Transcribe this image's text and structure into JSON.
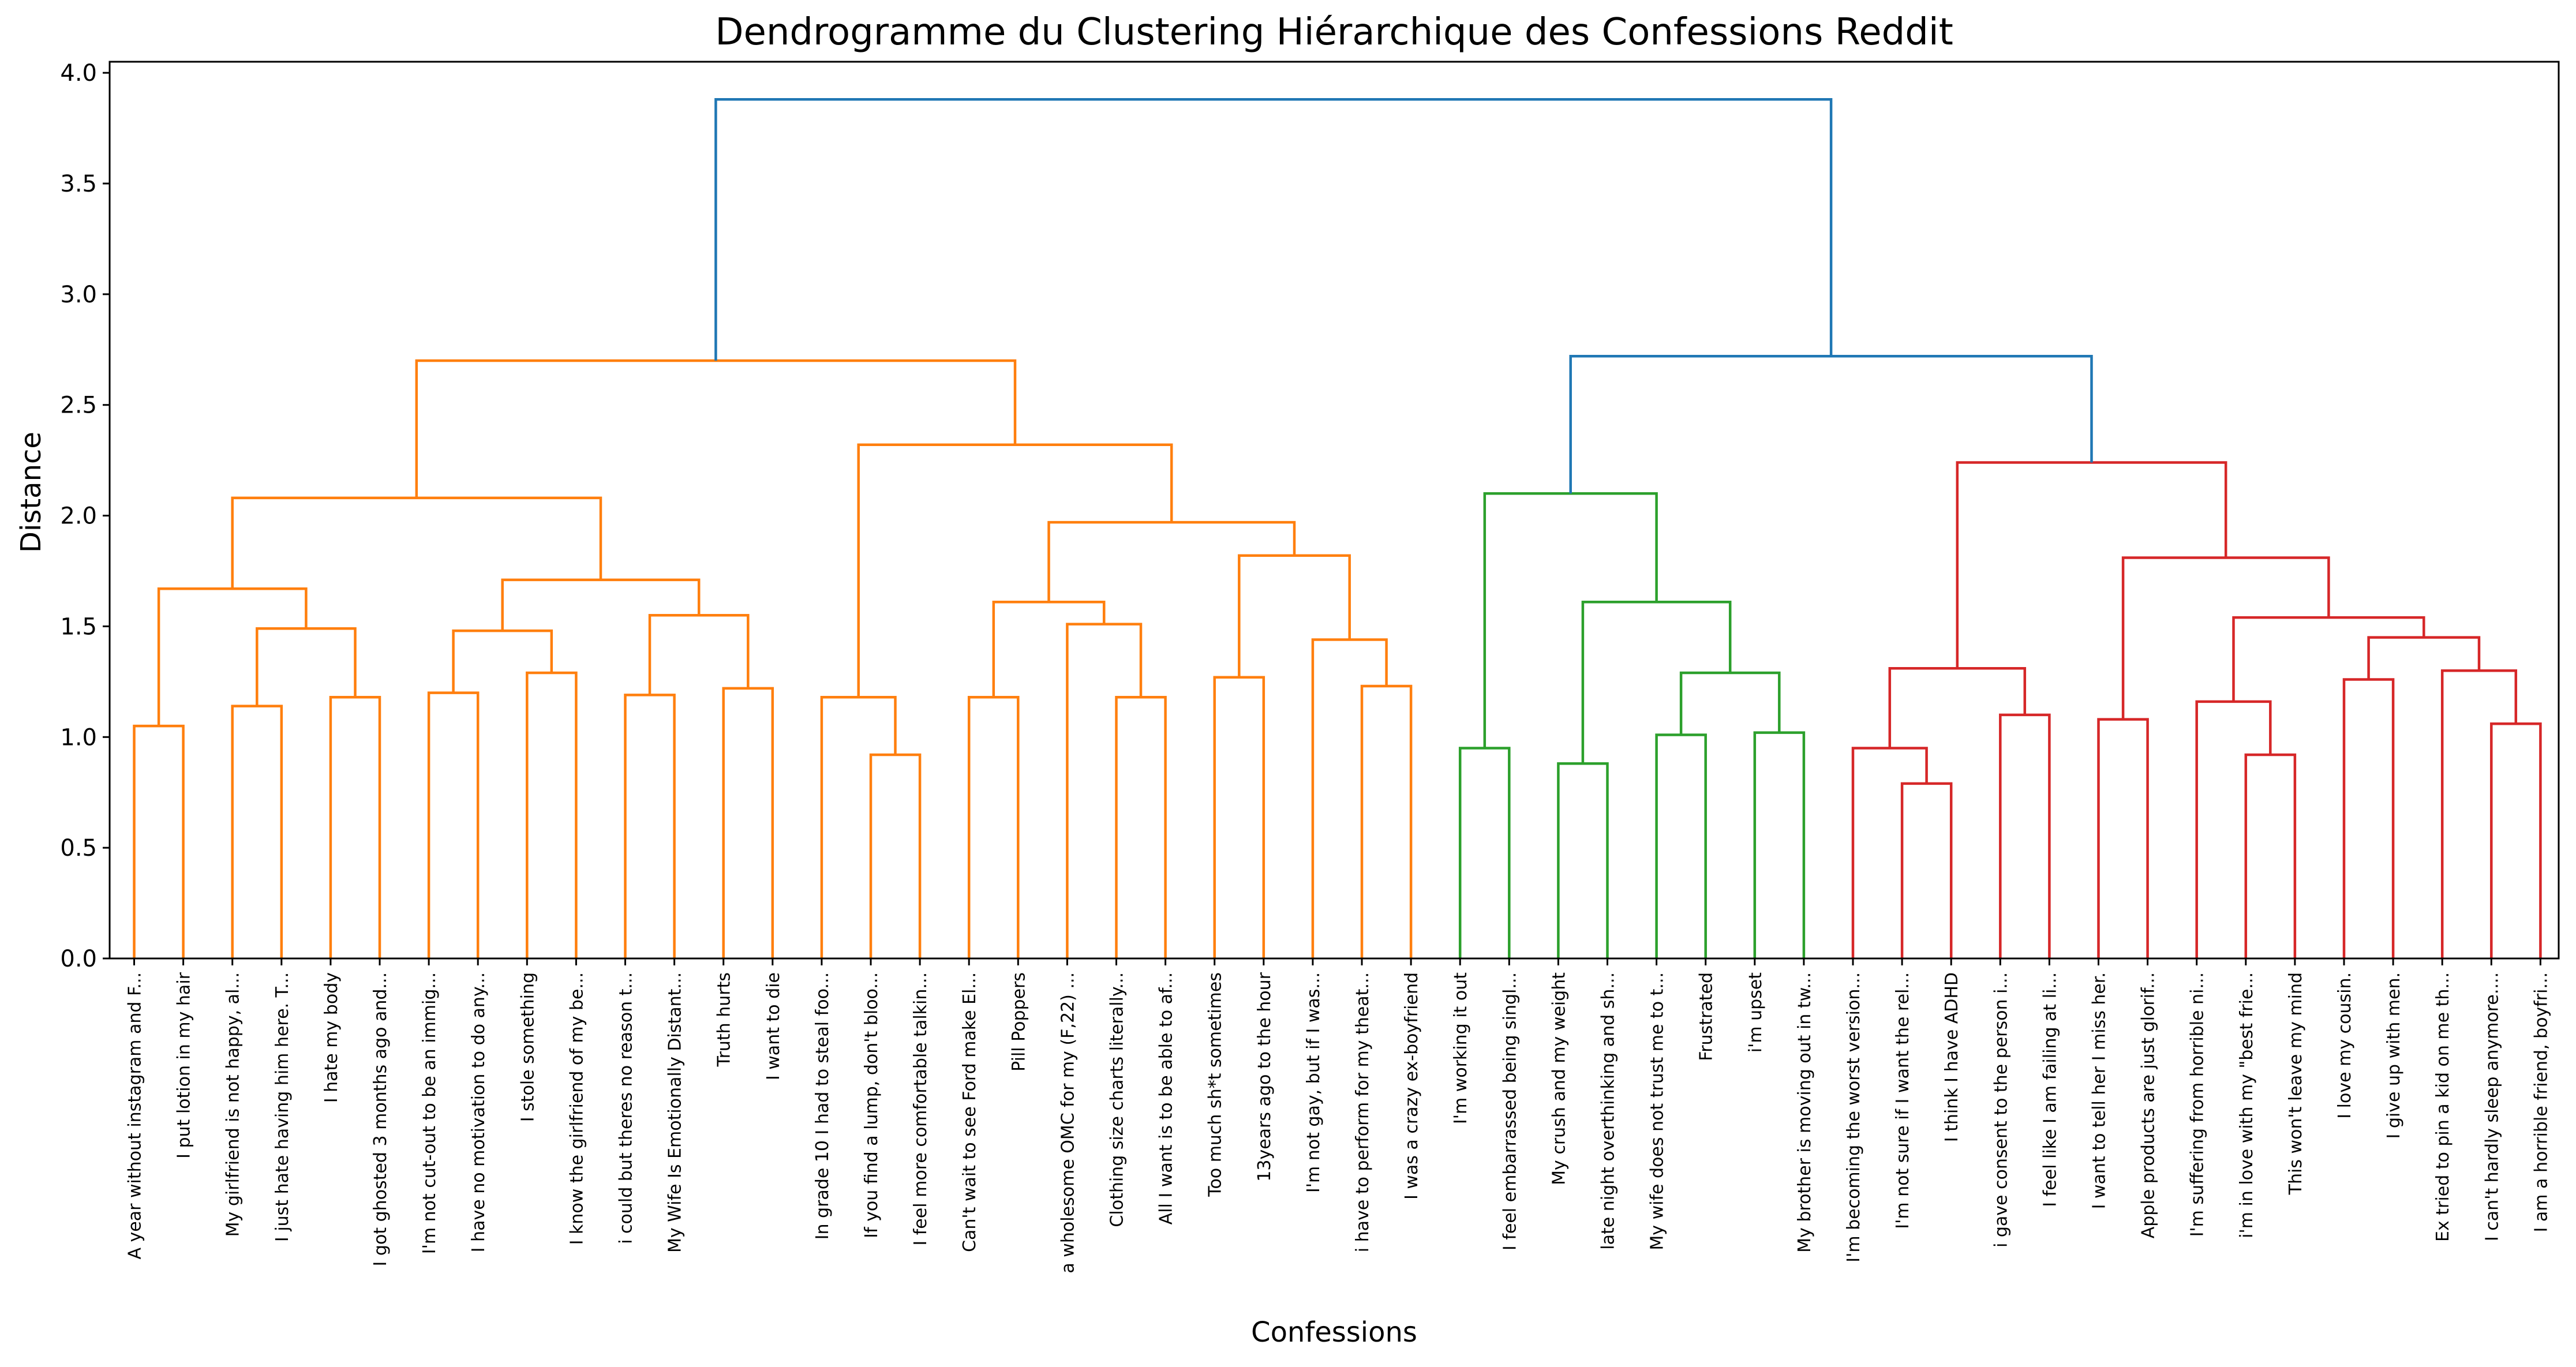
{
  "chart_data": {
    "type": "dendrogram",
    "title": "Dendrogramme du Clustering Hiérarchique des Confessions Reddit",
    "xlabel": "Confessions",
    "ylabel": "Distance",
    "ylim": [
      0,
      4.05
    ],
    "yticks": [
      "0.0",
      "0.5",
      "1.0",
      "1.5",
      "2.0",
      "2.5",
      "3.0",
      "3.5",
      "4.0"
    ],
    "grid": false,
    "colors": {
      "cluster_orange": "#ff7f0e",
      "cluster_green": "#2ca02c",
      "cluster_red": "#d62728",
      "root_blue": "#1f77b4"
    },
    "leaves": [
      "A year without instagram and F...",
      "I put lotion in my hair",
      "My girlfriend is not happy, al...",
      "I just hate having him here. T...",
      "I hate my body",
      "I got ghosted 3 months ago and...",
      "I'm not cut-out to be an immig...",
      "I have no motivation to do any...",
      "I stole something",
      "I know the girlfriend of my be...",
      "i could but theres no reason t...",
      "My Wife Is Emotionally Distant...",
      "Truth hurts",
      "I want to die",
      "In grade 10 I had to steal foo...",
      "If you find a lump, don't bloo...",
      "I feel more comfortable talkin...",
      "Can't wait to see Ford make El...",
      "Pill Poppers",
      "a wholesome OMC for my (F,22) ...",
      "Clothing size charts literally...",
      "All I want is to be able to af...",
      "Too much sh*t sometimes",
      "13years ago to the hour",
      "I'm not gay, but if I was...",
      "i have to perform for my theat...",
      "I was a crazy ex-boyfriend",
      "I'm working it out",
      "I feel embarrassed being singl...",
      "My crush and my weight",
      "late night overthinking and sh...",
      "My wife does not trust me to t...",
      "Frustrated",
      "i'm upset",
      "My brother is moving out in tw...",
      "I'm becoming the worst version...",
      "I'm not sure if I want the rel...",
      "I think I have ADHD",
      "i gave consent to the person i...",
      "I feel like I am failing at li...",
      "I want to tell her I miss her.",
      "Apple products are just glorif...",
      "I'm suffering from horrible ni...",
      "i'm in love with my \"best frie...",
      "This won't leave my mind",
      "I love my cousin.",
      "I give up with men.",
      "Ex tried to pin a kid on me th...",
      "I can't hardly sleep anymore....",
      "I am a horrible friend, boyfri..."
    ],
    "merges": [
      {
        "a": "L0",
        "b": "L1",
        "height": 1.05,
        "color": "cluster_orange"
      },
      {
        "a": "L2",
        "b": "L3",
        "height": 1.14,
        "color": "cluster_orange"
      },
      {
        "a": "L4",
        "b": "L5",
        "height": 1.18,
        "color": "cluster_orange"
      },
      {
        "a": "M1",
        "b": "M2",
        "height": 1.49,
        "color": "cluster_orange"
      },
      {
        "a": "M0",
        "b": "M3",
        "height": 1.67,
        "color": "cluster_orange"
      },
      {
        "a": "L6",
        "b": "L7",
        "height": 1.2,
        "color": "cluster_orange"
      },
      {
        "a": "L8",
        "b": "L9",
        "height": 1.29,
        "color": "cluster_orange"
      },
      {
        "a": "M5",
        "b": "M6",
        "height": 1.48,
        "color": "cluster_orange"
      },
      {
        "a": "L10",
        "b": "L11",
        "height": 1.19,
        "color": "cluster_orange"
      },
      {
        "a": "L12",
        "b": "L13",
        "height": 1.22,
        "color": "cluster_orange"
      },
      {
        "a": "M8",
        "b": "M9",
        "height": 1.55,
        "color": "cluster_orange"
      },
      {
        "a": "M7",
        "b": "M10",
        "height": 1.71,
        "color": "cluster_orange"
      },
      {
        "a": "M4",
        "b": "M11",
        "height": 2.08,
        "color": "cluster_orange"
      },
      {
        "a": "L15",
        "b": "L16",
        "height": 0.92,
        "color": "cluster_orange"
      },
      {
        "a": "L14",
        "b": "M13",
        "height": 1.18,
        "color": "cluster_orange"
      },
      {
        "a": "L17",
        "b": "L18",
        "height": 1.18,
        "color": "cluster_orange"
      },
      {
        "a": "L20",
        "b": "L21",
        "height": 1.18,
        "color": "cluster_orange"
      },
      {
        "a": "L19",
        "b": "M16",
        "height": 1.51,
        "color": "cluster_orange"
      },
      {
        "a": "M15",
        "b": "M17",
        "height": 1.61,
        "color": "cluster_orange"
      },
      {
        "a": "L22",
        "b": "L23",
        "height": 1.27,
        "color": "cluster_orange"
      },
      {
        "a": "L25",
        "b": "L26",
        "height": 1.23,
        "color": "cluster_orange"
      },
      {
        "a": "L24",
        "b": "M20",
        "height": 1.44,
        "color": "cluster_orange"
      },
      {
        "a": "M19",
        "b": "M21",
        "height": 1.82,
        "color": "cluster_orange"
      },
      {
        "a": "M18",
        "b": "M22",
        "height": 1.97,
        "color": "cluster_orange"
      },
      {
        "a": "M14",
        "b": "M23",
        "height": 2.32,
        "color": "cluster_orange"
      },
      {
        "a": "M12",
        "b": "M24",
        "height": 2.7,
        "color": "cluster_orange"
      },
      {
        "a": "L27",
        "b": "L28",
        "height": 0.95,
        "color": "cluster_green"
      },
      {
        "a": "L29",
        "b": "L30",
        "height": 0.88,
        "color": "cluster_green"
      },
      {
        "a": "L31",
        "b": "L32",
        "height": 1.01,
        "color": "cluster_green"
      },
      {
        "a": "L33",
        "b": "L34",
        "height": 1.02,
        "color": "cluster_green"
      },
      {
        "a": "M28",
        "b": "M29",
        "height": 1.29,
        "color": "cluster_green"
      },
      {
        "a": "M27",
        "b": "M30",
        "height": 1.61,
        "color": "cluster_green"
      },
      {
        "a": "M26",
        "b": "M31",
        "height": 2.1,
        "color": "cluster_green"
      },
      {
        "a": "L36",
        "b": "L37",
        "height": 0.79,
        "color": "cluster_red"
      },
      {
        "a": "L35",
        "b": "M33",
        "height": 0.95,
        "color": "cluster_red"
      },
      {
        "a": "L38",
        "b": "L39",
        "height": 1.1,
        "color": "cluster_red"
      },
      {
        "a": "M34",
        "b": "M35",
        "height": 1.31,
        "color": "cluster_red"
      },
      {
        "a": "L40",
        "b": "L41",
        "height": 1.08,
        "color": "cluster_red"
      },
      {
        "a": "L43",
        "b": "L44",
        "height": 0.92,
        "color": "cluster_red"
      },
      {
        "a": "L42",
        "b": "M38",
        "height": 1.16,
        "color": "cluster_red"
      },
      {
        "a": "L45",
        "b": "L46",
        "height": 1.26,
        "color": "cluster_red"
      },
      {
        "a": "L48",
        "b": "L49",
        "height": 1.06,
        "color": "cluster_red"
      },
      {
        "a": "L47",
        "b": "M41",
        "height": 1.3,
        "color": "cluster_red"
      },
      {
        "a": "M40",
        "b": "M42",
        "height": 1.45,
        "color": "cluster_red"
      },
      {
        "a": "M39",
        "b": "M43",
        "height": 1.54,
        "color": "cluster_red"
      },
      {
        "a": "M37",
        "b": "M44",
        "height": 1.81,
        "color": "cluster_red"
      },
      {
        "a": "M36",
        "b": "M45",
        "height": 2.24,
        "color": "cluster_red"
      },
      {
        "a": "M32",
        "b": "M46",
        "height": 2.72,
        "color": "root_blue"
      },
      {
        "a": "M25",
        "b": "M47",
        "height": 3.88,
        "color": "root_blue"
      }
    ]
  }
}
